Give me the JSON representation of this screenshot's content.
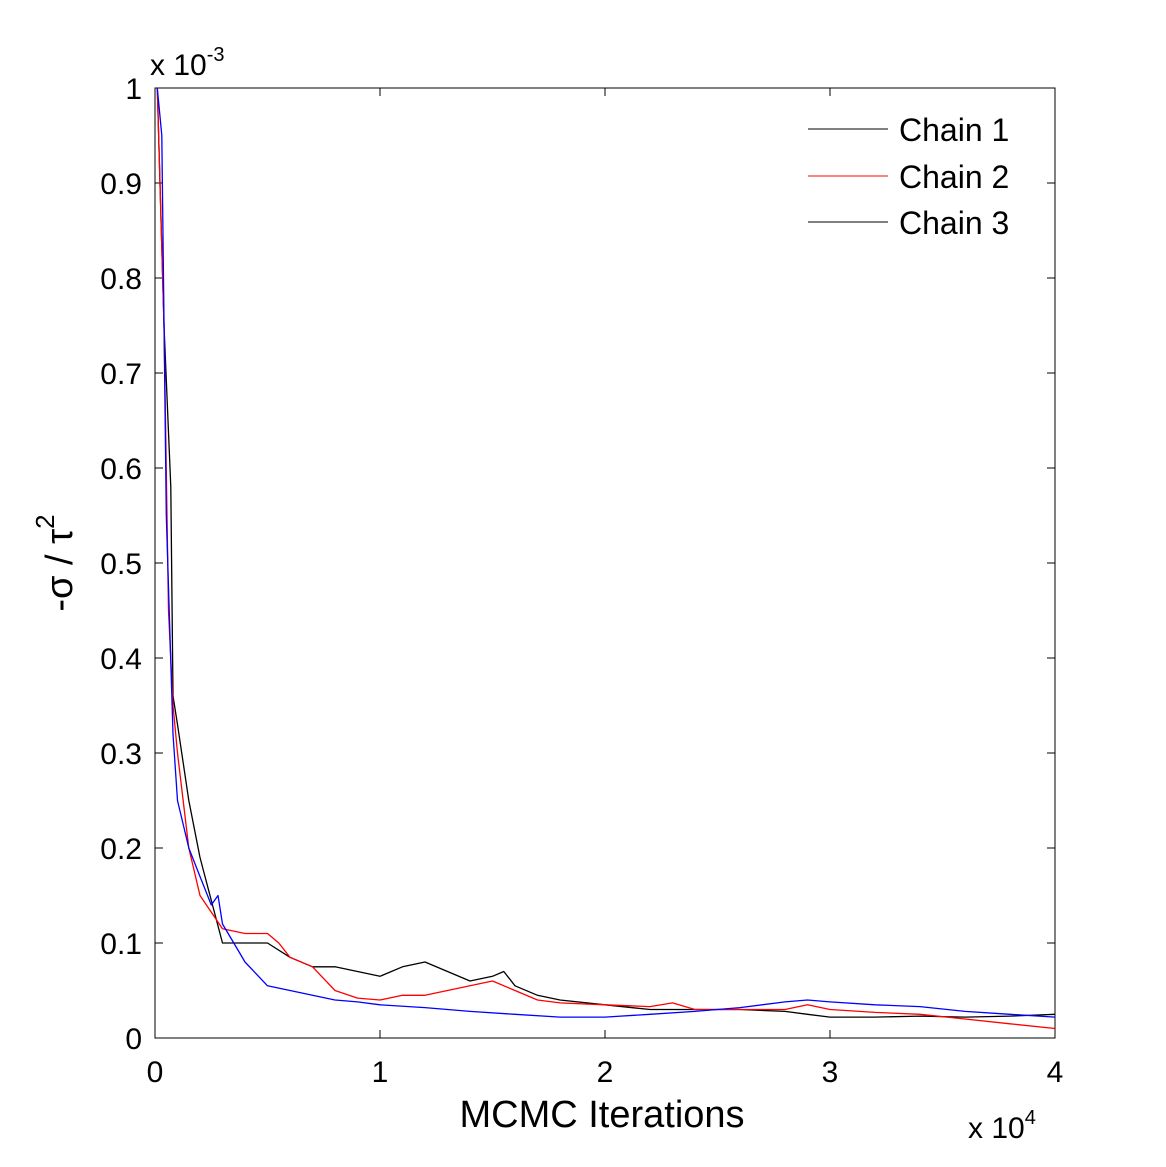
{
  "chart_data": {
    "type": "line",
    "title": "",
    "xlabel": "MCMC Iterations",
    "ylabel_prefix": "-σ / τ",
    "ylabel_superscript": "2",
    "x_multiplier": {
      "base": "x 10",
      "exponent": "4"
    },
    "y_multiplier": {
      "base": "x 10",
      "exponent": "-3"
    },
    "xlim": [
      0,
      4
    ],
    "ylim": [
      0,
      1
    ],
    "x_ticks": [
      0,
      1,
      2,
      3,
      4
    ],
    "x_tick_labels": [
      "0",
      "1",
      "2",
      "3",
      "4"
    ],
    "y_ticks": [
      0,
      0.1,
      0.2,
      0.3,
      0.4,
      0.5,
      0.6,
      0.7,
      0.8,
      0.9,
      1
    ],
    "y_tick_labels": [
      "0",
      "0.1",
      "0.2",
      "0.3",
      "0.4",
      "0.5",
      "0.6",
      "0.7",
      "0.8",
      "0.9",
      "1"
    ],
    "grid": false,
    "legend_position": "top-right",
    "series": [
      {
        "name": "Chain 1",
        "color": "#000000",
        "x": [
          0.01,
          0.04,
          0.07,
          0.08,
          0.1,
          0.15,
          0.2,
          0.3,
          0.4,
          0.5,
          0.6,
          0.7,
          0.8,
          0.9,
          1.0,
          1.1,
          1.2,
          1.3,
          1.4,
          1.5,
          1.55,
          1.6,
          1.7,
          1.8,
          2.0,
          2.2,
          2.4,
          2.6,
          2.8,
          2.9,
          3.0,
          3.2,
          3.4,
          3.6,
          3.8,
          4.0
        ],
        "values": [
          1.0,
          0.75,
          0.58,
          0.36,
          0.33,
          0.25,
          0.19,
          0.1,
          0.1,
          0.1,
          0.085,
          0.075,
          0.075,
          0.07,
          0.065,
          0.075,
          0.08,
          0.07,
          0.06,
          0.065,
          0.07,
          0.055,
          0.045,
          0.04,
          0.035,
          0.03,
          0.03,
          0.03,
          0.028,
          0.025,
          0.022,
          0.022,
          0.023,
          0.022,
          0.023,
          0.025
        ]
      },
      {
        "name": "Chain 2",
        "color": "#ff0000",
        "x": [
          0.01,
          0.04,
          0.06,
          0.08,
          0.1,
          0.15,
          0.2,
          0.3,
          0.4,
          0.5,
          0.55,
          0.6,
          0.7,
          0.8,
          0.9,
          1.0,
          1.1,
          1.2,
          1.3,
          1.4,
          1.5,
          1.6,
          1.7,
          1.8,
          2.0,
          2.2,
          2.3,
          2.4,
          2.6,
          2.8,
          2.9,
          3.0,
          3.2,
          3.4,
          3.6,
          3.8,
          4.0
        ],
        "values": [
          1.0,
          0.75,
          0.45,
          0.35,
          0.3,
          0.2,
          0.15,
          0.115,
          0.11,
          0.11,
          0.1,
          0.085,
          0.075,
          0.05,
          0.042,
          0.04,
          0.045,
          0.045,
          0.05,
          0.055,
          0.06,
          0.05,
          0.04,
          0.037,
          0.035,
          0.033,
          0.037,
          0.03,
          0.03,
          0.03,
          0.035,
          0.03,
          0.027,
          0.025,
          0.02,
          0.015,
          0.01
        ]
      },
      {
        "name": "Chain 3",
        "color": "#0000ff",
        "x": [
          0.01,
          0.03,
          0.05,
          0.08,
          0.1,
          0.15,
          0.2,
          0.25,
          0.28,
          0.3,
          0.35,
          0.4,
          0.5,
          0.6,
          0.7,
          0.8,
          0.9,
          1.0,
          1.2,
          1.4,
          1.6,
          1.8,
          2.0,
          2.2,
          2.4,
          2.6,
          2.8,
          2.9,
          3.0,
          3.2,
          3.4,
          3.6,
          3.8,
          4.0
        ],
        "values": [
          1.0,
          0.95,
          0.55,
          0.32,
          0.25,
          0.2,
          0.17,
          0.14,
          0.15,
          0.12,
          0.1,
          0.08,
          0.055,
          0.05,
          0.045,
          0.04,
          0.038,
          0.035,
          0.032,
          0.028,
          0.025,
          0.022,
          0.022,
          0.025,
          0.028,
          0.032,
          0.038,
          0.04,
          0.038,
          0.035,
          0.033,
          0.028,
          0.025,
          0.022
        ]
      }
    ]
  }
}
